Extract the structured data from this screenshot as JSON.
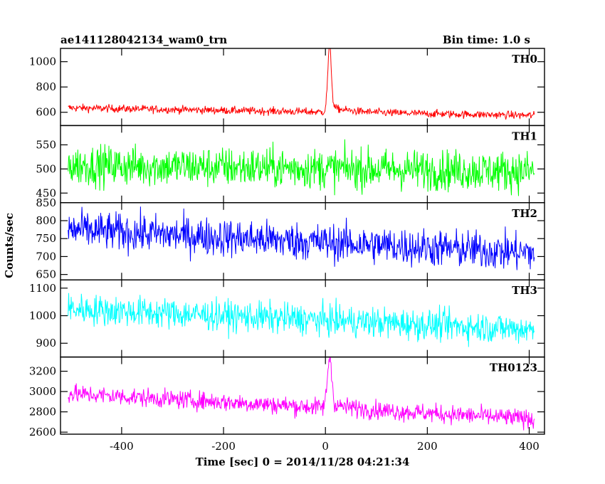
{
  "header": {
    "title": "ae141128042134_wam0_trn",
    "bin_time": "Bin time: 1.0 s"
  },
  "chart_data": {
    "type": "line",
    "ylabel": "Counts/sec",
    "xlabel": "Time [sec] 0 = 2014/11/28 04:21:34",
    "xlim": [
      -520,
      430
    ],
    "x_ticks": [
      -400,
      -200,
      0,
      200,
      400
    ],
    "x_start": -505,
    "x_end": 410,
    "panels": [
      {
        "name": "TH0",
        "color": "#ff0000",
        "ylim": [
          495,
          1105
        ],
        "y_ticks": [
          600,
          800,
          1000
        ],
        "baseline_start": 635,
        "baseline_end": 575,
        "noise": 22,
        "burst": {
          "peak_x": 8,
          "peak_value": 1105,
          "width": 5
        }
      },
      {
        "name": "TH1",
        "color": "#00ff00",
        "ylim": [
          430,
          590
        ],
        "y_ticks": [
          450,
          500,
          550
        ],
        "baseline_start": 508,
        "baseline_end": 495,
        "noise": 30,
        "burst": null
      },
      {
        "name": "TH2",
        "color": "#0000ff",
        "ylim": [
          635,
          850
        ],
        "y_ticks": [
          650,
          700,
          750,
          800,
          850
        ],
        "baseline_start": 775,
        "baseline_end": 710,
        "noise": 38,
        "burst": null
      },
      {
        "name": "TH3",
        "color": "#00ffff",
        "ylim": [
          850,
          1130
        ],
        "y_ticks": [
          900,
          1000,
          1100
        ],
        "baseline_start": 1025,
        "baseline_end": 950,
        "noise": 40,
        "burst": null
      },
      {
        "name": "TH0123",
        "color": "#ff00ff",
        "ylim": [
          2580,
          3340
        ],
        "y_ticks": [
          2600,
          2800,
          3000,
          3200
        ],
        "baseline_start": 2980,
        "baseline_end": 2730,
        "noise": 65,
        "burst": {
          "peak_x": 8,
          "peak_value": 3330,
          "width": 6
        }
      }
    ]
  }
}
